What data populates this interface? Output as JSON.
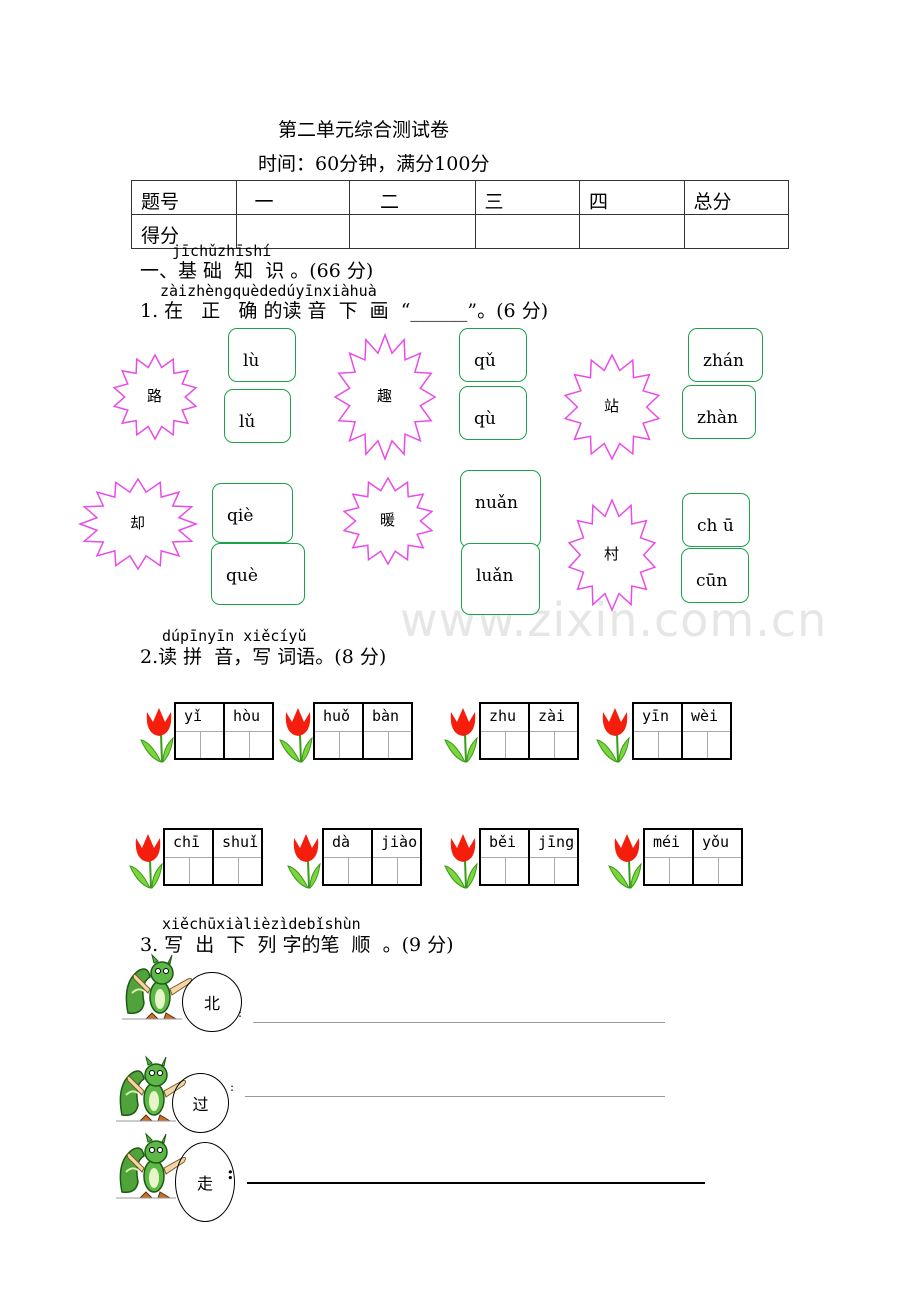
{
  "header": {
    "title": "第二单元综合测试卷",
    "subtitle": "时间：60分钟，满分100分"
  },
  "score_table": {
    "headers": [
      "题号",
      "一",
      "二",
      "三",
      "四",
      "总分"
    ],
    "row_label": "得分"
  },
  "watermark": "www.zixin.com.cn",
  "section1": {
    "pinyin": "jīchǔzhīshí",
    "heading": "一、基 础  知  识 。(66 分)"
  },
  "q1": {
    "pinyin": "zàizhèngquèdedúyīnxiàhuà",
    "heading": "1. 在   正   确 的读 音  下  画  “______”。(6 分)",
    "items": [
      {
        "char": "路",
        "options": [
          "lù",
          "lǔ"
        ]
      },
      {
        "char": "趣",
        "options": [
          "qǔ",
          "qù"
        ]
      },
      {
        "char": "站",
        "options": [
          "zhán",
          "zhàn"
        ]
      },
      {
        "char": "却",
        "options": [
          "qiè",
          "què"
        ]
      },
      {
        "char": "暖",
        "options": [
          "nuǎn",
          "luǎn"
        ]
      },
      {
        "char": "村",
        "options": [
          "ch ū",
          "cūn"
        ]
      }
    ],
    "colors": {
      "burst": "#e84ce8",
      "box": "#1aa34a"
    }
  },
  "q2": {
    "pinyin": "dúpīnyīn xiěcíyǔ",
    "heading": "2.读 拼  音，写 词语。(8 分)",
    "words": [
      [
        "yǐ",
        "hòu"
      ],
      [
        "huǒ",
        "bàn"
      ],
      [
        "zhu",
        "zài"
      ],
      [
        "yīn",
        "wèi"
      ],
      [
        "chī",
        "shuǐ"
      ],
      [
        "dà",
        "jiào"
      ],
      [
        "běi",
        "jīng"
      ],
      [
        "méi",
        "yǒu"
      ]
    ],
    "icon": "tulip-icon"
  },
  "q3": {
    "pinyin": "xiěchūxiàlièzìdebǐshùn",
    "heading": "3. 写  出  下  列 字的笔  顺  。(9 分)",
    "chars": [
      "北",
      "过",
      "走"
    ],
    "colon": ":",
    "icon": "squirrel-icon"
  }
}
